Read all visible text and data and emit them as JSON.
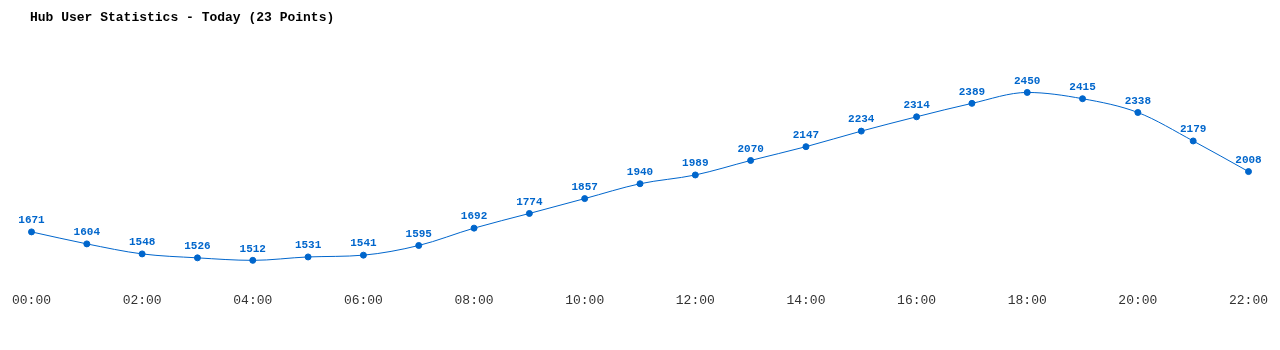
{
  "chart_data": {
    "type": "line",
    "title": "Hub User Statistics - Today (23 Points)",
    "categories": [
      "00:00",
      null,
      "02:00",
      null,
      "04:00",
      null,
      "06:00",
      null,
      "08:00",
      null,
      "10:00",
      null,
      "12:00",
      null,
      "14:00",
      null,
      "16:00",
      null,
      "18:00",
      null,
      "20:00",
      null,
      "22:00"
    ],
    "series": [
      {
        "color": "#0066cc",
        "values": [
          1671,
          1604,
          1548,
          1526,
          1512,
          1531,
          1541,
          1595,
          1692,
          1774,
          1857,
          1940,
          1989,
          2070,
          2147,
          2234,
          2314,
          2389,
          2450,
          2415,
          2338,
          2179,
          2008
        ]
      }
    ],
    "tick_labels": "x",
    "data_labels": true,
    "marker": "circle",
    "line_style": "solid",
    "grid": false,
    "legend": false
  }
}
